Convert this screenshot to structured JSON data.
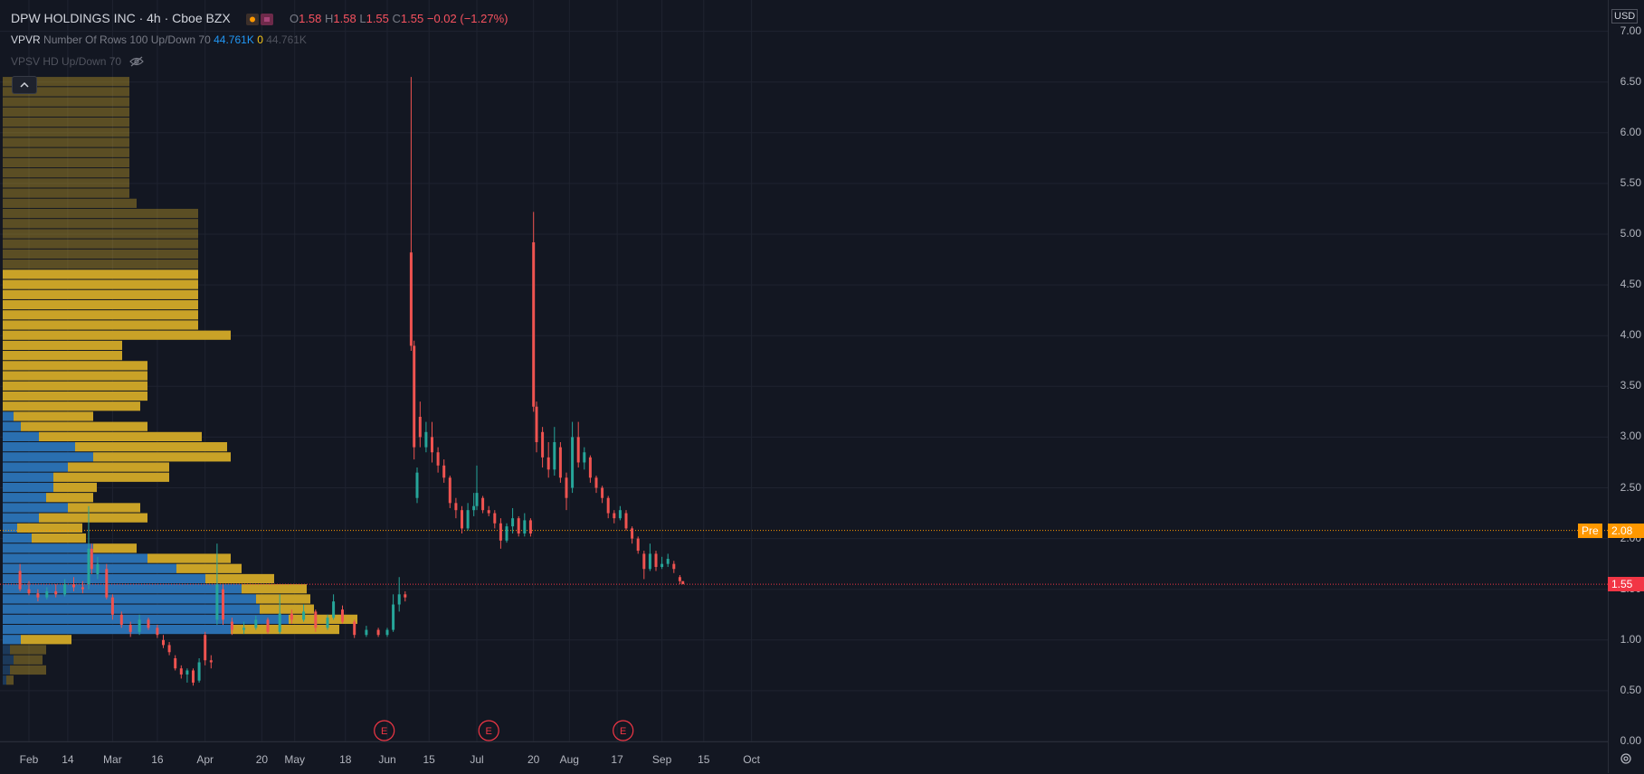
{
  "legend": {
    "title": "DPW HOLDINGS INC · 4h · Cboe BZX",
    "o_label": "O",
    "o_value": "1.58",
    "h_label": "H",
    "h_value": "1.58",
    "l_label": "L",
    "l_value": "1.55",
    "c_label": "C",
    "c_value": "1.55",
    "change": "−0.02 (−1.27%)",
    "vpvr_label": "VPVR",
    "vpvr_params": "Number Of Rows 100 Up/Down 70",
    "vpvr_up": "44.761K",
    "vpvr_zero": "0",
    "vpvr_total": "44.761K",
    "vpsv_label": "VPSV HD Up/Down 70"
  },
  "price_axis": {
    "currency": "USD",
    "ticks": [
      "7.00",
      "6.50",
      "6.00",
      "5.50",
      "5.00",
      "4.50",
      "4.00",
      "3.50",
      "3.00",
      "2.50",
      "2.00",
      "1.50",
      "1.00",
      "0.50",
      "0.00"
    ],
    "pre_label": "Pre",
    "pre_price": "2.08",
    "last_price": "1.55"
  },
  "time_axis": {
    "ticks": [
      "Feb",
      "14",
      "Mar",
      "16",
      "Apr",
      "20",
      "May",
      "18",
      "Jun",
      "15",
      "Jul",
      "20",
      "Aug",
      "17",
      "Sep",
      "15",
      "Oct"
    ]
  },
  "events": [
    {
      "label": "E",
      "date": "May 31"
    },
    {
      "label": "E",
      "date": "Jul 5"
    },
    {
      "label": "E",
      "date": "Aug 19"
    }
  ],
  "colors": {
    "background": "#131722",
    "up": "#26a69a",
    "down": "#ef5350",
    "vp_up": "#2a6fb0",
    "vp_down": "#c9a227",
    "pre_line": "#ff9800",
    "last_line": "#f23645",
    "event_marker": "#f23645"
  },
  "chart_data": {
    "type": "candlestick",
    "title": "DPW HOLDINGS INC · 4h · Cboe BZX",
    "interval": "4h",
    "ylim": [
      0,
      7.0
    ],
    "x_range": [
      "Jan 29",
      "Oct 22"
    ],
    "current_price": 1.55,
    "premarket_price": 2.08,
    "candles": [
      {
        "date": "Jan 29",
        "o": 1.68,
        "h": 1.75,
        "l": 1.48,
        "c": 1.5
      },
      {
        "date": "Feb 1",
        "o": 1.5,
        "h": 1.58,
        "l": 1.44,
        "c": 1.46
      },
      {
        "date": "Feb 4",
        "o": 1.46,
        "h": 1.5,
        "l": 1.38,
        "c": 1.42
      },
      {
        "date": "Feb 7",
        "o": 1.42,
        "h": 1.52,
        "l": 1.4,
        "c": 1.48
      },
      {
        "date": "Feb 10",
        "o": 1.48,
        "h": 1.55,
        "l": 1.42,
        "c": 1.45
      },
      {
        "date": "Feb 13",
        "o": 1.45,
        "h": 1.6,
        "l": 1.43,
        "c": 1.55
      },
      {
        "date": "Feb 16",
        "o": 1.55,
        "h": 1.62,
        "l": 1.48,
        "c": 1.52
      },
      {
        "date": "Feb 19",
        "o": 1.52,
        "h": 1.58,
        "l": 1.46,
        "c": 1.5
      },
      {
        "date": "Feb 21",
        "o": 1.55,
        "h": 2.32,
        "l": 1.5,
        "c": 1.9
      },
      {
        "date": "Feb 22",
        "o": 1.9,
        "h": 1.95,
        "l": 1.65,
        "c": 1.7
      },
      {
        "date": "Feb 24",
        "o": 1.65,
        "h": 1.82,
        "l": 1.6,
        "c": 1.75
      },
      {
        "date": "Feb 27",
        "o": 1.7,
        "h": 1.75,
        "l": 1.4,
        "c": 1.42
      },
      {
        "date": "Mar 1",
        "o": 1.42,
        "h": 1.45,
        "l": 1.2,
        "c": 1.25
      },
      {
        "date": "Mar 4",
        "o": 1.25,
        "h": 1.28,
        "l": 1.12,
        "c": 1.15
      },
      {
        "date": "Mar 7",
        "o": 1.15,
        "h": 1.18,
        "l": 1.03,
        "c": 1.08
      },
      {
        "date": "Mar 10",
        "o": 1.08,
        "h": 1.25,
        "l": 1.05,
        "c": 1.2
      },
      {
        "date": "Mar 13",
        "o": 1.2,
        "h": 1.22,
        "l": 1.1,
        "c": 1.12
      },
      {
        "date": "Mar 16",
        "o": 1.12,
        "h": 1.15,
        "l": 1.02,
        "c": 1.05
      },
      {
        "date": "Mar 18",
        "o": 1.0,
        "h": 1.05,
        "l": 0.92,
        "c": 0.95
      },
      {
        "date": "Mar 20",
        "o": 0.95,
        "h": 0.98,
        "l": 0.85,
        "c": 0.88
      },
      {
        "date": "Mar 22",
        "o": 0.82,
        "h": 0.85,
        "l": 0.7,
        "c": 0.72
      },
      {
        "date": "Mar 24",
        "o": 0.72,
        "h": 0.75,
        "l": 0.62,
        "c": 0.66
      },
      {
        "date": "Mar 26",
        "o": 0.66,
        "h": 0.72,
        "l": 0.58,
        "c": 0.7
      },
      {
        "date": "Mar 28",
        "o": 0.7,
        "h": 0.72,
        "l": 0.55,
        "c": 0.58
      },
      {
        "date": "Mar 30",
        "o": 0.6,
        "h": 0.82,
        "l": 0.58,
        "c": 0.78
      },
      {
        "date": "Apr 1",
        "o": 1.05,
        "h": 1.08,
        "l": 0.75,
        "c": 0.8
      },
      {
        "date": "Apr 3",
        "o": 0.8,
        "h": 0.85,
        "l": 0.72,
        "c": 0.78
      },
      {
        "date": "Apr 5",
        "o": 1.2,
        "h": 1.95,
        "l": 1.15,
        "c": 1.55
      },
      {
        "date": "Apr 7",
        "o": 1.5,
        "h": 1.55,
        "l": 1.15,
        "c": 1.2
      },
      {
        "date": "Apr 10",
        "o": 1.18,
        "h": 1.22,
        "l": 1.05,
        "c": 1.1
      },
      {
        "date": "Apr 14",
        "o": 1.1,
        "h": 1.18,
        "l": 1.06,
        "c": 1.12
      },
      {
        "date": "Apr 18",
        "o": 1.12,
        "h": 1.24,
        "l": 1.1,
        "c": 1.2
      },
      {
        "date": "Apr 22",
        "o": 1.2,
        "h": 1.22,
        "l": 1.06,
        "c": 1.08
      },
      {
        "date": "Apr 26",
        "o": 1.08,
        "h": 1.45,
        "l": 1.06,
        "c": 1.26
      },
      {
        "date": "Apr 30",
        "o": 1.26,
        "h": 1.3,
        "l": 1.16,
        "c": 1.2
      },
      {
        "date": "May 4",
        "o": 1.2,
        "h": 1.35,
        "l": 1.18,
        "c": 1.28
      },
      {
        "date": "May 8",
        "o": 1.28,
        "h": 1.3,
        "l": 1.08,
        "c": 1.12
      },
      {
        "date": "May 12",
        "o": 1.12,
        "h": 1.25,
        "l": 1.1,
        "c": 1.22
      },
      {
        "date": "May 14",
        "o": 1.22,
        "h": 1.45,
        "l": 1.2,
        "c": 1.38
      },
      {
        "date": "May 17",
        "o": 1.3,
        "h": 1.34,
        "l": 1.16,
        "c": 1.18
      },
      {
        "date": "May 21",
        "o": 1.18,
        "h": 1.2,
        "l": 1.02,
        "c": 1.05
      },
      {
        "date": "May 25",
        "o": 1.05,
        "h": 1.14,
        "l": 1.03,
        "c": 1.1
      },
      {
        "date": "May 29",
        "o": 1.1,
        "h": 1.12,
        "l": 1.03,
        "c": 1.05
      },
      {
        "date": "Jun 1",
        "o": 1.05,
        "h": 1.12,
        "l": 1.03,
        "c": 1.1
      },
      {
        "date": "Jun 3",
        "o": 1.1,
        "h": 1.45,
        "l": 1.08,
        "c": 1.35
      },
      {
        "date": "Jun 5",
        "o": 1.35,
        "h": 1.62,
        "l": 1.28,
        "c": 1.45
      },
      {
        "date": "Jun 7",
        "o": 1.45,
        "h": 1.48,
        "l": 1.38,
        "c": 1.42
      },
      {
        "date": "Jun 9",
        "o": 4.82,
        "h": 6.55,
        "l": 3.85,
        "c": 3.9
      },
      {
        "date": "Jun 10",
        "o": 3.9,
        "h": 3.95,
        "l": 2.78,
        "c": 2.9
      },
      {
        "date": "Jun 11",
        "o": 2.4,
        "h": 2.7,
        "l": 2.35,
        "c": 2.65
      },
      {
        "date": "Jun 12",
        "o": 3.2,
        "h": 3.35,
        "l": 2.9,
        "c": 3.0
      },
      {
        "date": "Jun 14",
        "o": 2.9,
        "h": 3.15,
        "l": 2.85,
        "c": 3.05
      },
      {
        "date": "Jun 16",
        "o": 3.0,
        "h": 3.15,
        "l": 2.75,
        "c": 2.85
      },
      {
        "date": "Jun 18",
        "o": 2.85,
        "h": 2.9,
        "l": 2.65,
        "c": 2.72
      },
      {
        "date": "Jun 20",
        "o": 2.72,
        "h": 2.78,
        "l": 2.55,
        "c": 2.6
      },
      {
        "date": "Jun 22",
        "o": 2.6,
        "h": 2.62,
        "l": 2.3,
        "c": 2.35
      },
      {
        "date": "Jun 24",
        "o": 2.35,
        "h": 2.4,
        "l": 2.2,
        "c": 2.28
      },
      {
        "date": "Jun 26",
        "o": 2.28,
        "h": 2.32,
        "l": 2.05,
        "c": 2.1
      },
      {
        "date": "Jun 28",
        "o": 2.1,
        "h": 2.35,
        "l": 2.08,
        "c": 2.28
      },
      {
        "date": "Jun 30",
        "o": 2.28,
        "h": 2.45,
        "l": 2.22,
        "c": 2.32
      },
      {
        "date": "Jul 1",
        "o": 2.32,
        "h": 2.72,
        "l": 2.28,
        "c": 2.45
      },
      {
        "date": "Jul 3",
        "o": 2.4,
        "h": 2.42,
        "l": 2.25,
        "c": 2.28
      },
      {
        "date": "Jul 5",
        "o": 2.28,
        "h": 2.32,
        "l": 2.22,
        "c": 2.25
      },
      {
        "date": "Jul 7",
        "o": 2.25,
        "h": 2.28,
        "l": 2.1,
        "c": 2.15
      },
      {
        "date": "Jul 9",
        "o": 2.15,
        "h": 2.2,
        "l": 1.9,
        "c": 1.98
      },
      {
        "date": "Jul 11",
        "o": 1.98,
        "h": 2.15,
        "l": 1.96,
        "c": 2.12
      },
      {
        "date": "Jul 13",
        "o": 2.12,
        "h": 2.3,
        "l": 2.05,
        "c": 2.2
      },
      {
        "date": "Jul 15",
        "o": 2.2,
        "h": 2.22,
        "l": 2.02,
        "c": 2.05
      },
      {
        "date": "Jul 17",
        "o": 2.05,
        "h": 2.25,
        "l": 2.02,
        "c": 2.18
      },
      {
        "date": "Jul 19",
        "o": 2.18,
        "h": 2.2,
        "l": 2.02,
        "c": 2.05
      },
      {
        "date": "Jul 20",
        "o": 4.92,
        "h": 5.22,
        "l": 3.25,
        "c": 3.3
      },
      {
        "date": "Jul 21",
        "o": 3.3,
        "h": 3.35,
        "l": 2.85,
        "c": 2.95
      },
      {
        "date": "Jul 23",
        "o": 3.05,
        "h": 3.1,
        "l": 2.7,
        "c": 2.8
      },
      {
        "date": "Jul 25",
        "o": 2.8,
        "h": 2.95,
        "l": 2.6,
        "c": 2.68
      },
      {
        "date": "Jul 27",
        "o": 2.68,
        "h": 3.1,
        "l": 2.62,
        "c": 2.95
      },
      {
        "date": "Jul 29",
        "o": 2.9,
        "h": 2.95,
        "l": 2.55,
        "c": 2.6
      },
      {
        "date": "Jul 31",
        "o": 2.6,
        "h": 2.65,
        "l": 2.28,
        "c": 2.4
      },
      {
        "date": "Aug 2",
        "o": 2.5,
        "h": 3.15,
        "l": 2.45,
        "c": 3.0
      },
      {
        "date": "Aug 4",
        "o": 3.0,
        "h": 3.15,
        "l": 2.7,
        "c": 2.75
      },
      {
        "date": "Aug 6",
        "o": 2.75,
        "h": 2.9,
        "l": 2.68,
        "c": 2.85
      },
      {
        "date": "Aug 8",
        "o": 2.8,
        "h": 2.82,
        "l": 2.55,
        "c": 2.6
      },
      {
        "date": "Aug 10",
        "o": 2.6,
        "h": 2.62,
        "l": 2.45,
        "c": 2.5
      },
      {
        "date": "Aug 12",
        "o": 2.5,
        "h": 2.52,
        "l": 2.35,
        "c": 2.4
      },
      {
        "date": "Aug 14",
        "o": 2.4,
        "h": 2.42,
        "l": 2.2,
        "c": 2.25
      },
      {
        "date": "Aug 16",
        "o": 2.25,
        "h": 2.28,
        "l": 2.15,
        "c": 2.2
      },
      {
        "date": "Aug 18",
        "o": 2.2,
        "h": 2.32,
        "l": 2.18,
        "c": 2.28
      },
      {
        "date": "Aug 20",
        "o": 2.25,
        "h": 2.28,
        "l": 2.08,
        "c": 2.1
      },
      {
        "date": "Aug 22",
        "o": 2.1,
        "h": 2.12,
        "l": 1.95,
        "c": 2.0
      },
      {
        "date": "Aug 24",
        "o": 2.0,
        "h": 2.02,
        "l": 1.85,
        "c": 1.88
      },
      {
        "date": "Aug 26",
        "o": 1.85,
        "h": 1.88,
        "l": 1.6,
        "c": 1.7
      },
      {
        "date": "Aug 28",
        "o": 1.7,
        "h": 1.95,
        "l": 1.68,
        "c": 1.85
      },
      {
        "date": "Aug 30",
        "o": 1.85,
        "h": 1.88,
        "l": 1.68,
        "c": 1.72
      },
      {
        "date": "Sep 1",
        "o": 1.72,
        "h": 1.82,
        "l": 1.7,
        "c": 1.75
      },
      {
        "date": "Sep 3",
        "o": 1.75,
        "h": 1.85,
        "l": 1.72,
        "c": 1.8
      },
      {
        "date": "Sep 5",
        "o": 1.75,
        "h": 1.78,
        "l": 1.66,
        "c": 1.7
      },
      {
        "date": "Sep 7",
        "o": 1.62,
        "h": 1.64,
        "l": 1.55,
        "c": 1.58
      },
      {
        "date": "Sep 8",
        "o": 1.58,
        "h": 1.58,
        "l": 1.55,
        "c": 1.55
      }
    ],
    "volume_profile": {
      "name": "VPVR",
      "rows": [
        {
          "p": 6.5,
          "up": 0,
          "down": 0.35
        },
        {
          "p": 6.4,
          "up": 0,
          "down": 0.35
        },
        {
          "p": 6.3,
          "up": 0,
          "down": 0.35
        },
        {
          "p": 6.2,
          "up": 0,
          "down": 0.35
        },
        {
          "p": 6.1,
          "up": 0,
          "down": 0.35
        },
        {
          "p": 6.0,
          "up": 0,
          "down": 0.35
        },
        {
          "p": 5.9,
          "up": 0,
          "down": 0.35
        },
        {
          "p": 5.8,
          "up": 0,
          "down": 0.35
        },
        {
          "p": 5.7,
          "up": 0,
          "down": 0.35
        },
        {
          "p": 5.6,
          "up": 0,
          "down": 0.35
        },
        {
          "p": 5.5,
          "up": 0,
          "down": 0.35
        },
        {
          "p": 5.4,
          "up": 0,
          "down": 0.35
        },
        {
          "p": 5.3,
          "up": 0,
          "down": 0.37
        },
        {
          "p": 5.2,
          "up": 0,
          "down": 0.54
        },
        {
          "p": 5.1,
          "up": 0,
          "down": 0.54
        },
        {
          "p": 5.0,
          "up": 0,
          "down": 0.54
        },
        {
          "p": 4.9,
          "up": 0,
          "down": 0.54
        },
        {
          "p": 4.8,
          "up": 0,
          "down": 0.54
        },
        {
          "p": 4.7,
          "up": 0,
          "down": 0.54
        },
        {
          "p": 4.6,
          "up": 0,
          "down": 0.54
        },
        {
          "p": 4.5,
          "up": 0,
          "down": 0.54
        },
        {
          "p": 4.4,
          "up": 0,
          "down": 0.54
        },
        {
          "p": 4.3,
          "up": 0,
          "down": 0.54
        },
        {
          "p": 4.2,
          "up": 0,
          "down": 0.54
        },
        {
          "p": 4.1,
          "up": 0,
          "down": 0.54
        },
        {
          "p": 4.0,
          "up": 0,
          "down": 0.63
        },
        {
          "p": 3.9,
          "up": 0,
          "down": 0.33
        },
        {
          "p": 3.8,
          "up": 0,
          "down": 0.33
        },
        {
          "p": 3.7,
          "up": 0,
          "down": 0.4
        },
        {
          "p": 3.6,
          "up": 0,
          "down": 0.4
        },
        {
          "p": 3.5,
          "up": 0,
          "down": 0.4
        },
        {
          "p": 3.4,
          "up": 0,
          "down": 0.4
        },
        {
          "p": 3.3,
          "up": 0,
          "down": 0.38
        },
        {
          "p": 3.2,
          "up": 0.03,
          "down": 0.22
        },
        {
          "p": 3.1,
          "up": 0.05,
          "down": 0.35
        },
        {
          "p": 3.0,
          "up": 0.1,
          "down": 0.45
        },
        {
          "p": 2.9,
          "up": 0.2,
          "down": 0.42
        },
        {
          "p": 2.8,
          "up": 0.25,
          "down": 0.38
        },
        {
          "p": 2.7,
          "up": 0.18,
          "down": 0.28
        },
        {
          "p": 2.6,
          "up": 0.14,
          "down": 0.32
        },
        {
          "p": 2.5,
          "up": 0.14,
          "down": 0.12
        },
        {
          "p": 2.4,
          "up": 0.12,
          "down": 0.13
        },
        {
          "p": 2.3,
          "up": 0.18,
          "down": 0.2
        },
        {
          "p": 2.2,
          "up": 0.1,
          "down": 0.3
        },
        {
          "p": 2.1,
          "up": 0.04,
          "down": 0.18
        },
        {
          "p": 2.0,
          "up": 0.08,
          "down": 0.15
        },
        {
          "p": 1.9,
          "up": 0.25,
          "down": 0.12
        },
        {
          "p": 1.8,
          "up": 0.4,
          "down": 0.23
        },
        {
          "p": 1.7,
          "up": 0.48,
          "down": 0.18
        },
        {
          "p": 1.6,
          "up": 0.56,
          "down": 0.19
        },
        {
          "p": 1.5,
          "up": 0.66,
          "down": 0.18
        },
        {
          "p": 1.4,
          "up": 0.7,
          "down": 0.15
        },
        {
          "p": 1.3,
          "up": 0.71,
          "down": 0.15
        },
        {
          "p": 1.2,
          "up": 0.79,
          "down": 0.19
        },
        {
          "p": 1.1,
          "up": 0.63,
          "down": 0.3
        },
        {
          "p": 1.0,
          "up": 0.05,
          "down": 0.14
        },
        {
          "p": 0.9,
          "up": 0.02,
          "down": 0.1
        },
        {
          "p": 0.8,
          "up": 0.03,
          "down": 0.08
        },
        {
          "p": 0.7,
          "up": 0.02,
          "down": 0.1
        },
        {
          "p": 0.6,
          "up": 0.01,
          "down": 0.02
        }
      ]
    }
  }
}
